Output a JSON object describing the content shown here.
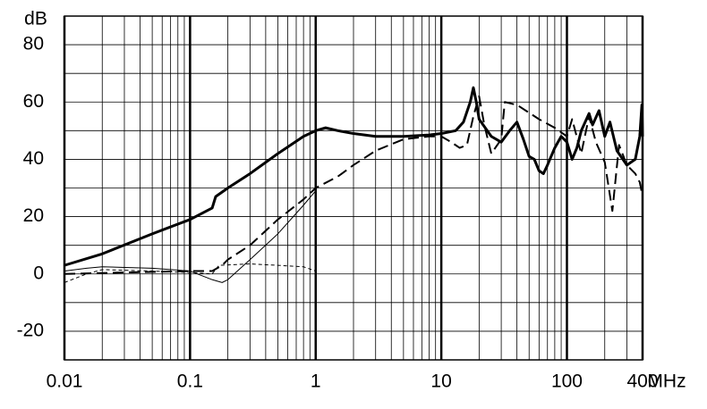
{
  "chart_data": {
    "type": "line",
    "x_label": "MHz",
    "y_label": "dB",
    "xlim": [
      0.01,
      400
    ],
    "ylim": [
      -30,
      90
    ],
    "xscale": "log",
    "xticks": [
      0.01,
      0.1,
      1,
      10,
      100,
      400
    ],
    "yticks": [
      -20,
      0,
      20,
      40,
      60,
      80
    ],
    "grid": true,
    "minor_grid": true,
    "series": [
      {
        "color": "#000000",
        "width": 3,
        "dash": false,
        "x": [
          0.01,
          0.02,
          0.05,
          0.1,
          0.15,
          0.16,
          0.2,
          0.3,
          0.5,
          0.8,
          1,
          1.2,
          1.5,
          2,
          3,
          5,
          8,
          10,
          13,
          15,
          17,
          18,
          19,
          20,
          25,
          30,
          35,
          40,
          45,
          50,
          55,
          60,
          65,
          70,
          80,
          90,
          100,
          110,
          120,
          130,
          150,
          160,
          180,
          200,
          220,
          250,
          300,
          350,
          380,
          395,
          400
        ],
        "values": [
          3,
          7,
          14,
          19,
          23,
          27,
          30,
          35,
          42,
          48,
          50,
          51,
          50,
          49,
          48,
          48,
          48.5,
          49,
          50,
          53,
          60,
          65,
          60,
          54,
          48,
          46,
          50,
          53,
          47,
          41,
          40,
          36,
          35,
          38,
          44,
          48,
          46,
          40,
          44,
          50,
          56,
          52,
          57,
          48,
          53,
          43,
          38,
          40,
          48,
          59,
          48
        ]
      },
      {
        "color": "#000000",
        "width": 2,
        "dash": true,
        "x": [
          0.01,
          0.03,
          0.1,
          0.15,
          0.18,
          0.2,
          0.3,
          0.5,
          0.8,
          1,
          1.5,
          2,
          3,
          5,
          8,
          10,
          12,
          14,
          16,
          18,
          20,
          22,
          25,
          30,
          32,
          40,
          60,
          80,
          100,
          110,
          130,
          150,
          170,
          200,
          230,
          260,
          300,
          350,
          380,
          400
        ],
        "values": [
          0,
          0.5,
          1,
          1,
          3,
          5,
          10,
          19,
          26,
          30,
          34,
          38,
          43,
          47,
          48,
          48,
          46,
          44,
          45,
          55,
          62,
          52,
          42,
          47,
          60,
          59,
          54,
          51,
          48,
          54,
          42,
          55,
          46,
          39,
          22,
          45,
          38,
          35,
          32,
          27
        ]
      },
      {
        "color": "#000000",
        "width": 1,
        "dash": false,
        "x": [
          0.01,
          0.015,
          0.02,
          0.05,
          0.1,
          0.15,
          0.18,
          0.2,
          0.3,
          0.5,
          0.8,
          1
        ],
        "values": [
          1,
          2,
          2.5,
          2,
          1,
          -2,
          -3,
          -2,
          5,
          14,
          24,
          29
        ]
      },
      {
        "color": "#000000",
        "width": 1,
        "dash": true,
        "x": [
          0.01,
          0.015,
          0.02,
          0.05,
          0.1,
          0.15,
          0.17,
          0.3,
          0.5,
          0.8,
          1
        ],
        "values": [
          -3,
          0,
          1.5,
          1,
          0.5,
          0,
          3,
          3.5,
          3,
          2.5,
          1
        ]
      }
    ]
  }
}
